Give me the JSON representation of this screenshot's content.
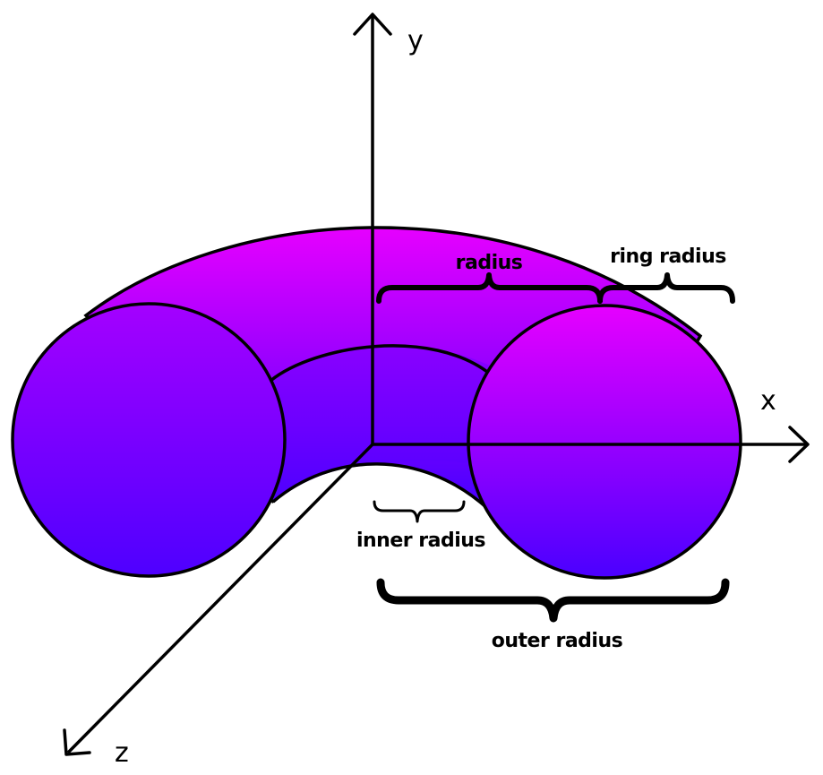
{
  "axes": {
    "x_label": "x",
    "y_label": "y",
    "z_label": "z"
  },
  "annotations": {
    "radius": "radius",
    "ring_radius": "ring radius",
    "inner_radius": "inner radius",
    "outer_radius": "outer radius"
  },
  "colors": {
    "gradient_top": "#e600ff",
    "gradient_bottom": "#4a00ff",
    "stroke": "#000000"
  }
}
